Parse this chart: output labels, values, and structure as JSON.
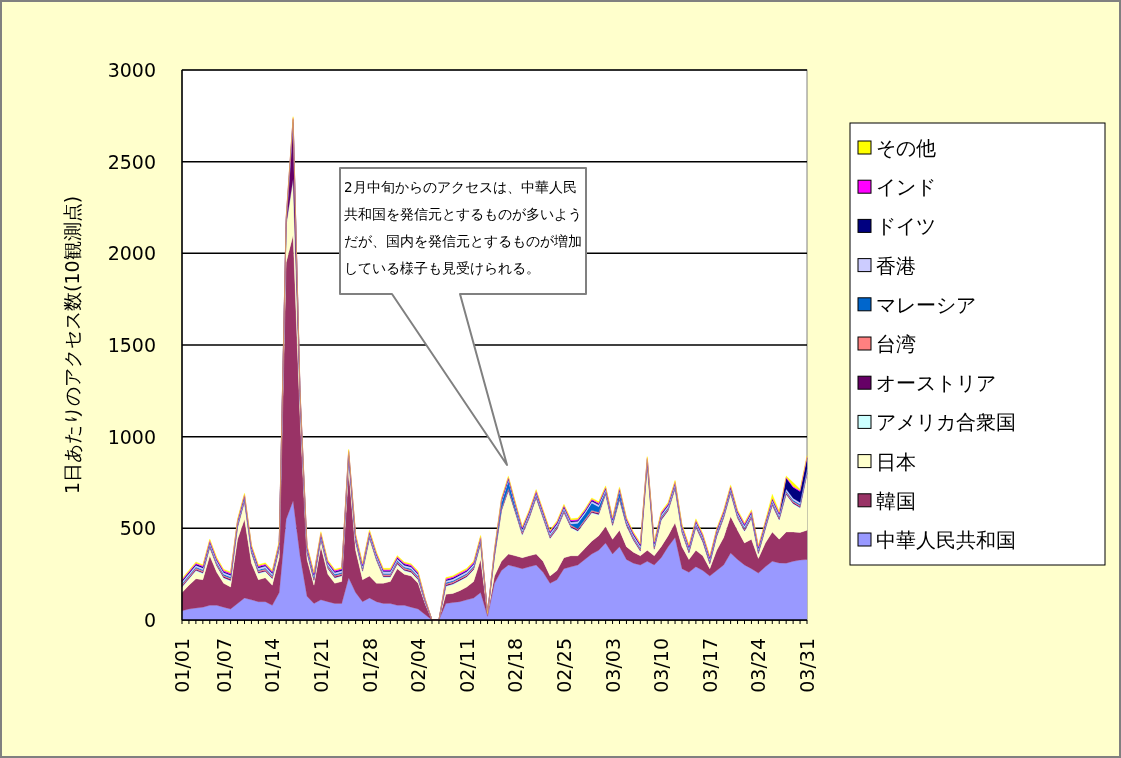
{
  "chart_data": {
    "type": "area",
    "stacked": true,
    "ylabel": "1日あたりのアクセス数(10観測点)",
    "categories": [
      "01/01",
      null,
      null,
      null,
      null,
      null,
      "01/07",
      null,
      null,
      null,
      null,
      null,
      null,
      "01/14",
      null,
      null,
      null,
      null,
      null,
      null,
      "01/21",
      null,
      null,
      null,
      null,
      null,
      null,
      "01/28",
      null,
      null,
      null,
      null,
      null,
      null,
      "02/04",
      null,
      null,
      null,
      null,
      null,
      null,
      "02/11",
      null,
      null,
      null,
      null,
      null,
      null,
      "02/18",
      null,
      null,
      null,
      null,
      null,
      null,
      "02/25",
      null,
      null,
      null,
      null,
      null,
      null,
      "03/03",
      null,
      null,
      null,
      null,
      null,
      null,
      "03/10",
      null,
      null,
      null,
      null,
      null,
      null,
      "03/17",
      null,
      null,
      null,
      null,
      null,
      null,
      "03/24",
      null,
      null,
      null,
      null,
      null,
      null,
      "03/31"
    ],
    "ylim": [
      0,
      3000
    ],
    "yticks": [
      0,
      500,
      1000,
      1500,
      2000,
      2500,
      3000
    ],
    "grid": "y",
    "legend": "right",
    "annotations": [
      "2月中旬からのアクセスは、中華人民共和国を発信元とするものが多いようだが、国内を発信元とするものが増加している様子も見受けられる。"
    ],
    "series": [
      {
        "name": "中華人民共和国",
        "color": "#9999ff",
        "values": [
          50,
          60,
          65,
          70,
          80,
          80,
          70,
          60,
          90,
          120,
          110,
          100,
          100,
          80,
          150,
          550,
          650,
          350,
          130,
          90,
          110,
          100,
          90,
          90,
          230,
          150,
          100,
          120,
          100,
          90,
          90,
          80,
          80,
          70,
          60,
          30,
          0,
          0,
          90,
          95,
          100,
          110,
          120,
          150,
          20,
          200,
          270,
          300,
          290,
          280,
          290,
          300,
          260,
          200,
          220,
          280,
          290,
          300,
          330,
          360,
          380,
          420,
          360,
          400,
          330,
          310,
          300,
          320,
          300,
          340,
          400,
          450,
          280,
          260,
          290,
          270,
          240,
          270,
          300,
          365,
          330,
          300,
          280,
          256,
          290,
          320,
          311,
          310,
          320,
          327,
          330
        ]
      },
      {
        "name": "韓国",
        "color": "#993366",
        "values": [
          100,
          130,
          160,
          150,
          270,
          180,
          130,
          120,
          350,
          430,
          200,
          120,
          130,
          110,
          190,
          1400,
          1450,
          750,
          200,
          100,
          290,
          150,
          110,
          120,
          580,
          230,
          120,
          120,
          100,
          110,
          120,
          200,
          170,
          170,
          140,
          60,
          0,
          0,
          50,
          50,
          60,
          70,
          90,
          180,
          10,
          40,
          50,
          60,
          60,
          60,
          60,
          60,
          60,
          40,
          50,
          60,
          60,
          50,
          60,
          70,
          80,
          90,
          80,
          90,
          70,
          60,
          50,
          60,
          50,
          60,
          60,
          80,
          120,
          70,
          90,
          80,
          40,
          110,
          150,
          200,
          160,
          120,
          160,
          80,
          130,
          160,
          130,
          170,
          160,
          150,
          160
        ]
      },
      {
        "name": "日本",
        "color": "#ffffcc",
        "values": [
          25,
          30,
          40,
          30,
          40,
          30,
          25,
          30,
          60,
          90,
          50,
          30,
          30,
          30,
          40,
          200,
          300,
          100,
          30,
          20,
          30,
          25,
          25,
          25,
          70,
          40,
          40,
          200,
          120,
          30,
          20,
          20,
          15,
          15,
          15,
          5,
          0,
          0,
          40,
          45,
          50,
          50,
          60,
          80,
          5,
          100,
          270,
          340,
          230,
          120,
          200,
          300,
          230,
          200,
          220,
          240,
          150,
          130,
          140,
          150,
          110,
          170,
          70,
          160,
          110,
          60,
          20,
          460,
          30,
          140,
          130,
          180,
          70,
          30,
          120,
          70,
          20,
          70,
          100,
          120,
          60,
          60,
          110,
          20,
          70,
          140,
          100,
          200,
          150,
          130,
          300
        ]
      },
      {
        "name": "アメリカ合衆国",
        "color": "#ccffff",
        "values": [
          6,
          6,
          6,
          6,
          6,
          6,
          6,
          6,
          6,
          6,
          6,
          6,
          6,
          6,
          6,
          6,
          6,
          6,
          6,
          6,
          6,
          6,
          6,
          6,
          6,
          6,
          6,
          6,
          6,
          6,
          6,
          6,
          6,
          6,
          6,
          3,
          0,
          0,
          6,
          6,
          6,
          6,
          6,
          6,
          0,
          6,
          6,
          6,
          6,
          6,
          6,
          6,
          6,
          6,
          6,
          6,
          6,
          6,
          6,
          6,
          6,
          6,
          6,
          6,
          6,
          6,
          6,
          6,
          6,
          6,
          6,
          6,
          6,
          6,
          6,
          6,
          6,
          6,
          6,
          6,
          6,
          6,
          6,
          6,
          6,
          6,
          6,
          6,
          6,
          6,
          6
        ]
      },
      {
        "name": "オーストリア",
        "color": "#660066",
        "values": [
          6,
          6,
          6,
          6,
          6,
          6,
          6,
          6,
          6,
          6,
          6,
          6,
          6,
          6,
          6,
          6,
          300,
          6,
          6,
          6,
          6,
          6,
          6,
          6,
          6,
          6,
          6,
          6,
          6,
          6,
          6,
          6,
          6,
          6,
          6,
          3,
          0,
          0,
          6,
          6,
          6,
          6,
          6,
          6,
          0,
          6,
          6,
          6,
          6,
          6,
          6,
          6,
          6,
          6,
          6,
          6,
          6,
          6,
          6,
          6,
          6,
          6,
          6,
          6,
          6,
          6,
          6,
          6,
          6,
          6,
          6,
          6,
          6,
          6,
          6,
          6,
          6,
          6,
          6,
          6,
          6,
          6,
          6,
          6,
          6,
          6,
          6,
          6,
          6,
          6,
          6
        ]
      },
      {
        "name": "台湾",
        "color": "#ff8080",
        "values": [
          6,
          6,
          6,
          6,
          6,
          6,
          6,
          6,
          6,
          6,
          6,
          6,
          6,
          6,
          6,
          6,
          6,
          6,
          6,
          6,
          6,
          6,
          6,
          6,
          6,
          6,
          6,
          6,
          6,
          6,
          6,
          6,
          6,
          6,
          6,
          3,
          0,
          0,
          6,
          6,
          6,
          6,
          6,
          6,
          0,
          6,
          6,
          6,
          6,
          6,
          6,
          6,
          6,
          6,
          6,
          6,
          6,
          6,
          6,
          6,
          6,
          6,
          6,
          6,
          6,
          6,
          6,
          6,
          6,
          6,
          6,
          6,
          6,
          6,
          6,
          6,
          6,
          6,
          6,
          6,
          6,
          6,
          6,
          6,
          6,
          6,
          6,
          6,
          6,
          6,
          6
        ]
      },
      {
        "name": "マレーシア",
        "color": "#0066cc",
        "values": [
          6,
          6,
          6,
          6,
          6,
          6,
          6,
          6,
          6,
          6,
          6,
          6,
          6,
          6,
          6,
          6,
          6,
          6,
          6,
          6,
          6,
          6,
          6,
          6,
          6,
          6,
          6,
          6,
          6,
          6,
          6,
          6,
          6,
          6,
          6,
          3,
          0,
          0,
          6,
          6,
          6,
          6,
          6,
          6,
          0,
          6,
          30,
          40,
          20,
          6,
          6,
          6,
          6,
          6,
          6,
          6,
          6,
          30,
          30,
          40,
          30,
          6,
          6,
          30,
          6,
          6,
          6,
          6,
          6,
          6,
          6,
          6,
          6,
          6,
          6,
          6,
          6,
          6,
          6,
          6,
          6,
          6,
          6,
          6,
          6,
          6,
          6,
          6,
          6,
          6,
          6
        ]
      },
      {
        "name": "香港",
        "color": "#ccccff",
        "values": [
          10,
          10,
          10,
          10,
          10,
          10,
          10,
          10,
          10,
          10,
          10,
          10,
          10,
          10,
          10,
          10,
          10,
          10,
          10,
          10,
          10,
          10,
          10,
          10,
          10,
          10,
          10,
          10,
          10,
          10,
          10,
          10,
          10,
          10,
          10,
          5,
          0,
          0,
          10,
          10,
          10,
          10,
          10,
          10,
          0,
          10,
          10,
          10,
          10,
          10,
          10,
          10,
          10,
          10,
          10,
          10,
          10,
          10,
          10,
          10,
          10,
          10,
          10,
          10,
          10,
          10,
          10,
          10,
          10,
          10,
          10,
          10,
          10,
          10,
          10,
          10,
          10,
          10,
          10,
          10,
          10,
          10,
          10,
          10,
          10,
          10,
          10,
          10,
          10,
          10,
          10
        ]
      },
      {
        "name": "ドイツ",
        "color": "#000080",
        "values": [
          6,
          6,
          6,
          6,
          6,
          6,
          6,
          6,
          6,
          6,
          6,
          6,
          6,
          6,
          6,
          6,
          6,
          6,
          6,
          6,
          6,
          6,
          6,
          6,
          6,
          6,
          6,
          6,
          6,
          6,
          6,
          6,
          6,
          6,
          6,
          3,
          0,
          0,
          6,
          6,
          6,
          6,
          6,
          6,
          0,
          6,
          6,
          6,
          6,
          6,
          6,
          6,
          6,
          6,
          6,
          6,
          6,
          6,
          6,
          6,
          6,
          6,
          6,
          6,
          6,
          6,
          6,
          6,
          6,
          6,
          6,
          6,
          6,
          6,
          6,
          6,
          6,
          6,
          6,
          6,
          6,
          6,
          6,
          6,
          6,
          6,
          6,
          60,
          60,
          60,
          60
        ]
      },
      {
        "name": "インド",
        "color": "#ff00ff",
        "values": [
          6,
          6,
          6,
          6,
          6,
          6,
          6,
          6,
          6,
          6,
          6,
          6,
          6,
          6,
          6,
          6,
          6,
          6,
          6,
          6,
          6,
          6,
          6,
          6,
          6,
          6,
          6,
          6,
          6,
          6,
          6,
          6,
          6,
          6,
          6,
          3,
          0,
          0,
          6,
          6,
          6,
          6,
          6,
          6,
          0,
          6,
          6,
          6,
          6,
          6,
          6,
          6,
          6,
          6,
          6,
          6,
          6,
          6,
          6,
          6,
          6,
          6,
          6,
          6,
          6,
          6,
          6,
          6,
          6,
          6,
          6,
          6,
          6,
          6,
          6,
          6,
          6,
          6,
          6,
          6,
          6,
          6,
          6,
          6,
          6,
          6,
          6,
          6,
          6,
          6,
          6
        ]
      },
      {
        "name": "その他",
        "color": "#ffff00",
        "values": [
          6,
          6,
          6,
          6,
          6,
          6,
          6,
          6,
          6,
          6,
          6,
          6,
          6,
          6,
          6,
          6,
          6,
          6,
          6,
          6,
          6,
          6,
          6,
          6,
          6,
          6,
          6,
          6,
          6,
          6,
          6,
          6,
          6,
          6,
          6,
          3,
          0,
          0,
          6,
          6,
          6,
          6,
          6,
          6,
          0,
          6,
          6,
          6,
          6,
          6,
          6,
          6,
          6,
          6,
          6,
          6,
          6,
          6,
          6,
          6,
          6,
          6,
          6,
          6,
          6,
          6,
          6,
          6,
          6,
          6,
          6,
          6,
          6,
          6,
          6,
          6,
          6,
          6,
          6,
          6,
          6,
          6,
          6,
          6,
          6,
          20,
          6,
          6,
          20,
          6,
          6
        ]
      }
    ]
  }
}
